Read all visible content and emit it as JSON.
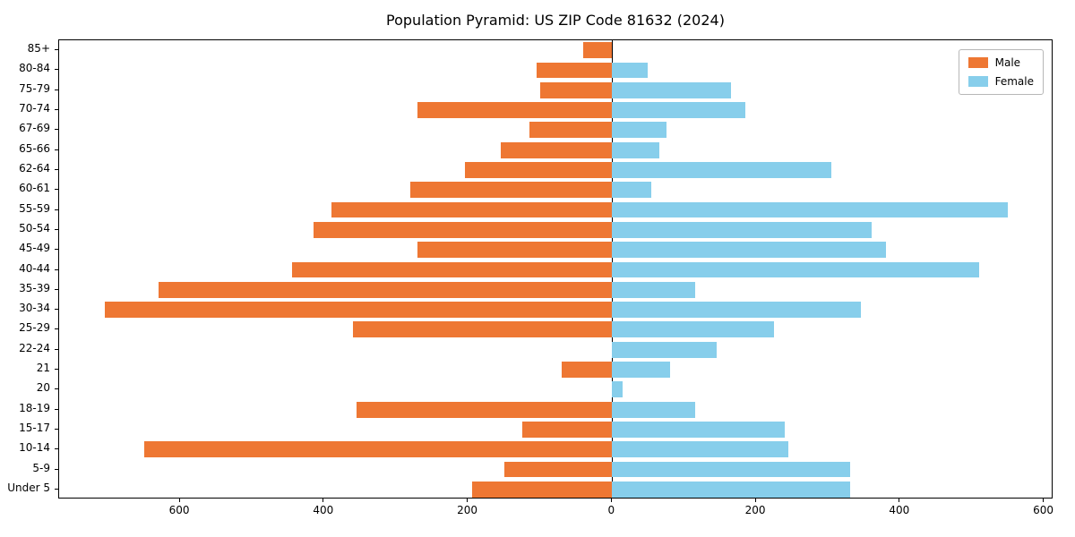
{
  "title": "Population Pyramid: US ZIP Code 81632 (2024)",
  "legend": {
    "male_label": "Male",
    "female_label": "Female"
  },
  "colors": {
    "male": "#EE7733",
    "female": "#87CEEB",
    "axis": "#000000",
    "legend_border": "#b7b7b7"
  },
  "chart_data": {
    "type": "bar",
    "subtype": "population-pyramid",
    "title": "Population Pyramid: US ZIP Code 81632 (2024)",
    "orientation": "horizontal",
    "categories_top_to_bottom": [
      "85+",
      "80-84",
      "75-79",
      "70-74",
      "67-69",
      "65-66",
      "62-64",
      "60-61",
      "55-59",
      "50-54",
      "45-49",
      "40-44",
      "35-39",
      "30-34",
      "25-29",
      "22-24",
      "21",
      "20",
      "18-19",
      "15-17",
      "10-14",
      "5-9",
      "Under 5"
    ],
    "series": [
      {
        "name": "Male",
        "side": "left",
        "color": "#EE7733",
        "values": [
          40,
          105,
          100,
          270,
          115,
          155,
          205,
          280,
          390,
          415,
          270,
          445,
          630,
          705,
          360,
          0,
          70,
          0,
          355,
          125,
          650,
          150,
          195
        ]
      },
      {
        "name": "Female",
        "side": "right",
        "color": "#87CEEB",
        "values": [
          0,
          50,
          165,
          185,
          75,
          65,
          305,
          55,
          550,
          360,
          380,
          510,
          115,
          345,
          225,
          145,
          80,
          15,
          115,
          240,
          245,
          330,
          330
        ]
      }
    ],
    "xlim": [
      -768,
      613
    ],
    "xticks": [
      -600,
      -400,
      -200,
      0,
      200,
      400,
      600
    ],
    "xtick_labels": [
      "600",
      "400",
      "200",
      "0",
      "200",
      "400",
      "600"
    ],
    "grid": false,
    "legend_position": "upper right",
    "bar_height_fraction": 0.8
  }
}
